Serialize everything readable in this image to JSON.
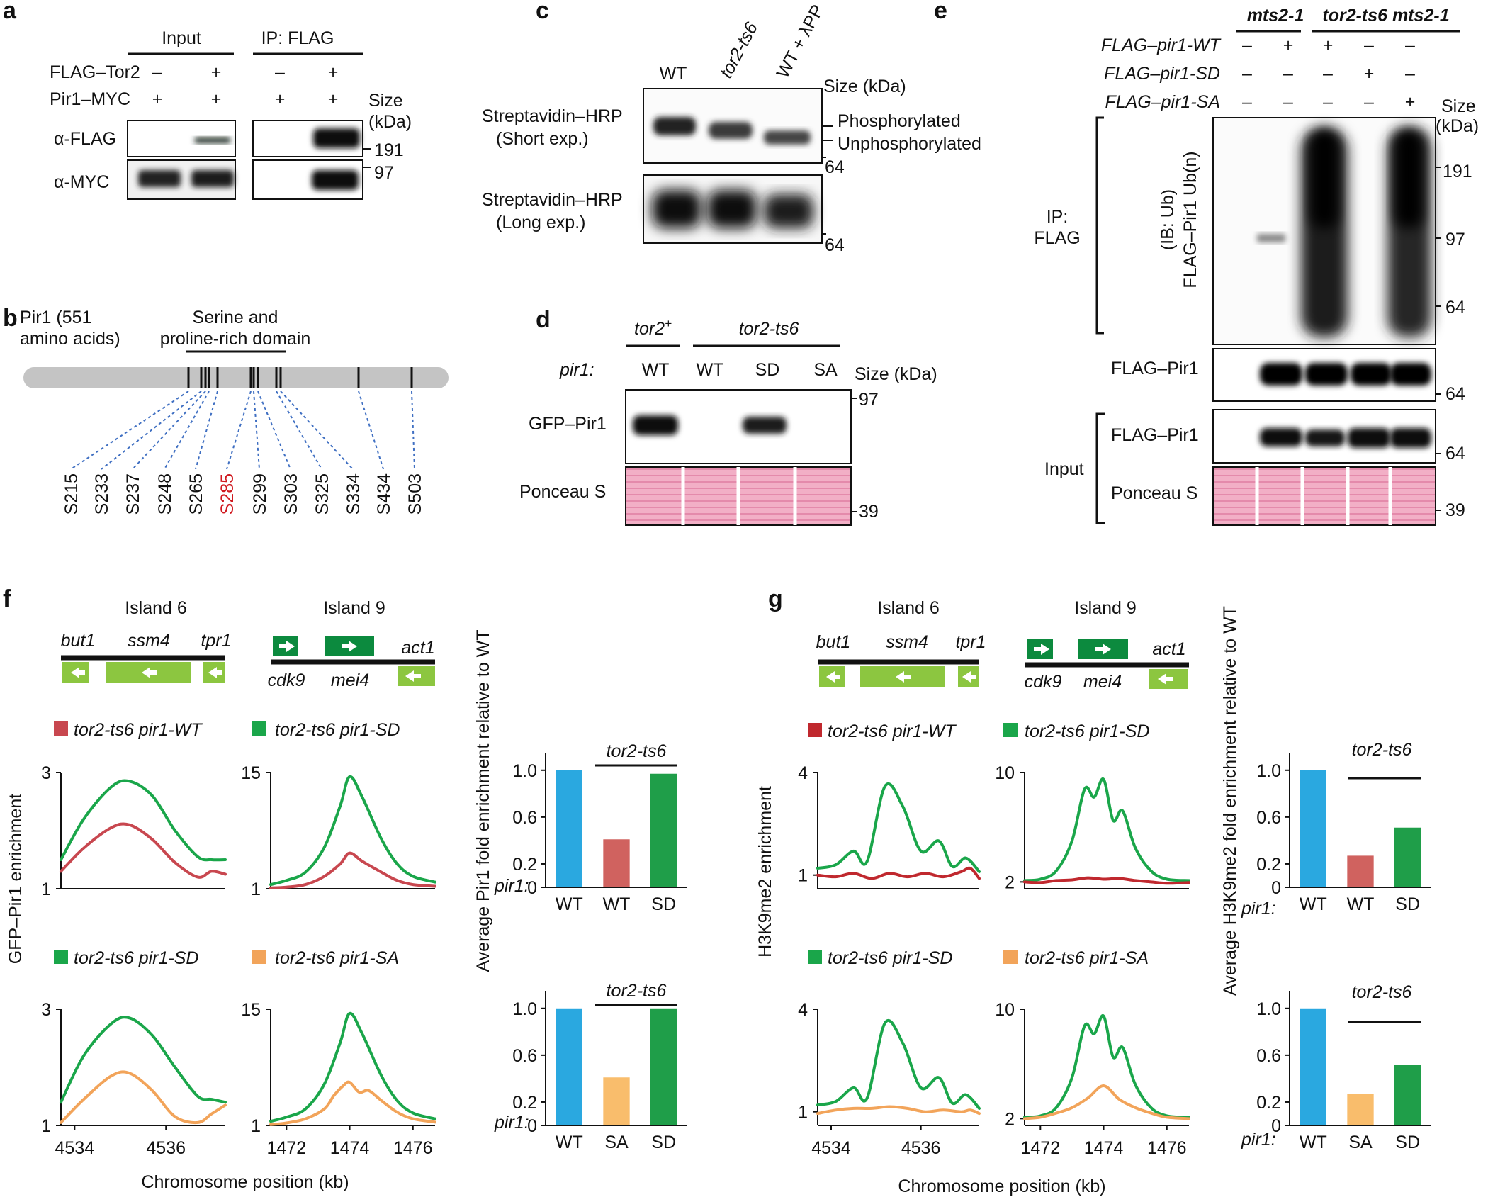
{
  "panels": {
    "a": {
      "letter": "a",
      "input_header": "Input",
      "ip_header": "IP: FLAG",
      "row1_label": "FLAG–Tor2",
      "row2_label": "Pir1–MYC",
      "row1_marks": [
        "–",
        "+",
        "–",
        "+"
      ],
      "row2_marks": [
        "+",
        "+",
        "+",
        "+"
      ],
      "size_label": "Size",
      "kda_label": "(kDa)",
      "blot1_label": "α-FLAG",
      "blot2_label": "α-MYC",
      "marker_191": "191",
      "marker_97": "97"
    },
    "b": {
      "letter": "b",
      "protein_line1": "Pir1 (551",
      "protein_line2": "amino acids)",
      "domain_line1": "Serine and",
      "domain_line2": "proline-rich domain",
      "sites": [
        "S215",
        "S233",
        "S237",
        "S248",
        "S265",
        "S285",
        "S299",
        "S303",
        "S325",
        "S334",
        "S434",
        "S503"
      ],
      "highlighted_site": "S285",
      "highlight_color": "#d0191f",
      "bar_color": "#c4c4c4",
      "dash_color": "#3f6fc2"
    },
    "c": {
      "letter": "c",
      "lanes": [
        "WT",
        "tor2-ts6",
        "WT + λPP"
      ],
      "size_label": "Size (kDa)",
      "blot1_line1": "Streptavidin–HRP",
      "blot1_line2": "(Short exp.)",
      "blot2_line1": "Streptavidin–HRP",
      "blot2_line2": "(Long exp.)",
      "phos_label": "Phosphorylated",
      "unphos_label": "Unphosphorylated",
      "marker_64": "64"
    },
    "d": {
      "letter": "d",
      "strain1": "tor2",
      "strain1_sup": "+",
      "strain2": "tor2-ts6",
      "pir1_label": "pir1:",
      "lanes": [
        "WT",
        "WT",
        "SD",
        "SA"
      ],
      "size_label": "Size (kDa)",
      "blot1_label": "GFP–Pir1",
      "blot2_label": "Ponceau S",
      "marker_97": "97",
      "marker_39": "39"
    },
    "e": {
      "letter": "e",
      "strain1": "mts2-1",
      "strain2": "tor2-ts6 mts2-1",
      "rows": [
        {
          "label": "FLAG–pir1-WT",
          "marks": [
            "–",
            "+",
            "+",
            "–",
            "–"
          ]
        },
        {
          "label": "FLAG–pir1-SD",
          "marks": [
            "–",
            "–",
            "–",
            "+",
            "–"
          ]
        },
        {
          "label": "FLAG–pir1-SA",
          "marks": [
            "–",
            "–",
            "–",
            "–",
            "+"
          ]
        }
      ],
      "size_label": "Size",
      "kda_label": "(kDa)",
      "ip_line1": "IP:",
      "ip_line2": "FLAG",
      "ib_line1": "(IB: Ub)",
      "ib_line2": "FLAG–Pir1 Ub(n)",
      "flag_pir1": "FLAG–Pir1",
      "input_label": "Input",
      "input_flag_pir1": "FLAG–Pir1",
      "ponceau": "Ponceau S",
      "markers": [
        "191",
        "97",
        "64",
        "64",
        "64",
        "39"
      ]
    },
    "f": {
      "letter": "f",
      "island6": "Island 6",
      "island9": "Island 9",
      "genes6": [
        "but1",
        "ssm4",
        "tpr1"
      ],
      "genes9_top": [
        "act1"
      ],
      "genes9_bottom": [
        "cdk9",
        "mei4"
      ],
      "ylabel": "GFP–Pir1 enrichment",
      "xlabel": "Chromosome position (kb)",
      "legend_top": [
        "tor2-ts6 pir1-WT",
        "tor2-ts6 pir1-SD"
      ],
      "legend_bottom": [
        "tor2-ts6 pir1-SD",
        "tor2-ts6 pir1-SA"
      ],
      "bar_ylabel": "Average Pir1 fold enrichment relative to WT",
      "bar_strain": "tor2-ts6",
      "pir1_label": "pir1:"
    },
    "g": {
      "letter": "g",
      "island6": "Island 6",
      "island9": "Island 9",
      "genes6": [
        "but1",
        "ssm4",
        "tpr1"
      ],
      "genes9_top": [
        "act1"
      ],
      "genes9_bottom": [
        "cdk9",
        "mei4"
      ],
      "ylabel": "H3K9me2 enrichment",
      "xlabel": "Chromosome position (kb)",
      "legend_top": [
        "tor2-ts6 pir1-WT",
        "tor2-ts6 pir1-SD"
      ],
      "legend_bottom": [
        "tor2-ts6 pir1-SD",
        "tor2-ts6 pir1-SA"
      ],
      "bar_ylabel": "Average H3K9me2 fold enrichment relative to WT",
      "bar_strain": "tor2-ts6",
      "pir1_label": "pir1:"
    }
  },
  "colors": {
    "wt": "#c8474f",
    "sd": "#1aa64a",
    "sa": "#f2a45a",
    "blue": "#2aa8e0",
    "salmon": "#d0625f",
    "lightorange": "#f9bd6c",
    "darkgreen": "#1f9e49",
    "gene_light": "#8cc640",
    "gene_dark": "#0c8a3e",
    "ponceau": "#f0a7c0"
  },
  "chart_data": [
    {
      "id": "f_top_i6",
      "type": "line",
      "title": "Island 6",
      "ylabel": "GFP–Pir1 enrichment",
      "ylim": [
        1,
        3
      ],
      "yticks": [
        "1",
        "3"
      ],
      "xlim": [
        4533.7,
        4537.3
      ],
      "xticks": [
        "4534",
        "4536"
      ],
      "series": [
        {
          "name": "tor2-ts6 pir1-SD",
          "color": "#1aa64a",
          "x": [
            4533.7,
            4534.2,
            4534.8,
            4535.2,
            4535.7,
            4536.2,
            4536.7,
            4537.0,
            4537.3
          ],
          "y": [
            1.5,
            2.2,
            2.75,
            2.85,
            2.6,
            2.0,
            1.55,
            1.5,
            1.5
          ]
        },
        {
          "name": "tor2-ts6 pir1-WT",
          "color": "#c8474f",
          "x": [
            4533.7,
            4534.2,
            4534.8,
            4535.2,
            4535.7,
            4536.2,
            4536.7,
            4537.0,
            4537.3
          ],
          "y": [
            1.3,
            1.7,
            2.05,
            2.1,
            1.85,
            1.45,
            1.2,
            1.3,
            1.25
          ]
        }
      ]
    },
    {
      "id": "f_top_i9",
      "type": "line",
      "title": "Island 9",
      "ylim": [
        1,
        15
      ],
      "yticks": [
        "1",
        "15"
      ],
      "xlim": [
        1471.5,
        1476.7
      ],
      "xticks": [
        "1472",
        "1474",
        "1476"
      ],
      "series": [
        {
          "name": "tor2-ts6 pir1-SD",
          "color": "#1aa64a",
          "x": [
            1471.5,
            1472,
            1472.6,
            1473.2,
            1473.7,
            1474,
            1474.4,
            1475,
            1475.5,
            1476,
            1476.7
          ],
          "y": [
            1.5,
            2,
            3,
            6,
            11,
            14.5,
            12,
            7,
            4,
            2.5,
            1.8
          ]
        },
        {
          "name": "tor2-ts6 pir1-WT",
          "color": "#c8474f",
          "x": [
            1471.5,
            1472,
            1472.6,
            1473.2,
            1473.7,
            1474,
            1474.4,
            1475,
            1475.5,
            1476,
            1476.7
          ],
          "y": [
            1.1,
            1.2,
            1.5,
            2.5,
            4,
            5.3,
            4.3,
            3,
            2,
            1.5,
            1.3
          ]
        }
      ]
    },
    {
      "id": "f_bar_top",
      "type": "bar",
      "ylabel": "Average Pir1 fold enrichment relative to WT",
      "ylim": [
        0,
        1.15
      ],
      "yticks": [
        "0",
        "0.2",
        "0.6",
        "1.0"
      ],
      "categories": [
        "WT",
        "WT",
        "SD"
      ],
      "values": [
        1.0,
        0.41,
        0.97
      ],
      "colors": [
        "#2aa8e0",
        "#d0625f",
        "#1f9e49"
      ]
    },
    {
      "id": "f_bot_i6",
      "type": "line",
      "xlabel": "Chromosome position (kb)",
      "ylim": [
        1,
        3
      ],
      "yticks": [
        "1",
        "3"
      ],
      "xlim": [
        4533.7,
        4537.3
      ],
      "xticks": [
        "4534",
        "4536"
      ],
      "series": [
        {
          "name": "tor2-ts6 pir1-SD",
          "color": "#1aa64a",
          "x": [
            4533.7,
            4534.2,
            4534.8,
            4535.2,
            4535.7,
            4536.2,
            4536.7,
            4537.0,
            4537.3
          ],
          "y": [
            1.4,
            2.2,
            2.75,
            2.85,
            2.55,
            2.0,
            1.5,
            1.45,
            1.4
          ]
        },
        {
          "name": "tor2-ts6 pir1-SA",
          "color": "#f2a45a",
          "x": [
            4533.7,
            4534.2,
            4534.8,
            4535.2,
            4535.7,
            4536.2,
            4536.7,
            4537.0,
            4537.3
          ],
          "y": [
            1.05,
            1.45,
            1.85,
            1.9,
            1.6,
            1.15,
            1.05,
            1.2,
            1.35
          ]
        }
      ]
    },
    {
      "id": "f_bot_i9",
      "type": "line",
      "xlabel": "Chromosome position (kb)",
      "ylim": [
        1,
        15
      ],
      "yticks": [
        "1",
        "15"
      ],
      "xlim": [
        1471.5,
        1476.7
      ],
      "xticks": [
        "1472",
        "1474",
        "1476"
      ],
      "series": [
        {
          "name": "tor2-ts6 pir1-SD",
          "color": "#1aa64a",
          "x": [
            1471.5,
            1472,
            1472.6,
            1473.2,
            1473.7,
            1474,
            1474.4,
            1475,
            1475.5,
            1476,
            1476.7
          ],
          "y": [
            1.5,
            2,
            3,
            6,
            11,
            14.5,
            12,
            7,
            4,
            2.5,
            1.8
          ]
        },
        {
          "name": "tor2-ts6 pir1-SA",
          "color": "#f2a45a",
          "x": [
            1471.5,
            1472,
            1472.6,
            1473.2,
            1473.5,
            1473.8,
            1474,
            1474.3,
            1474.6,
            1475,
            1475.5,
            1476,
            1476.7
          ],
          "y": [
            1.1,
            1.3,
            1.8,
            3,
            4.6,
            5.8,
            6.2,
            5,
            5.2,
            4,
            2.6,
            1.8,
            1.4
          ]
        }
      ]
    },
    {
      "id": "f_bar_bot",
      "type": "bar",
      "ylim": [
        0,
        1.15
      ],
      "yticks": [
        "0",
        "0.2",
        "0.6",
        "1.0"
      ],
      "categories": [
        "WT",
        "SA",
        "SD"
      ],
      "values": [
        1.0,
        0.41,
        1.0
      ],
      "colors": [
        "#2aa8e0",
        "#f9bd6c",
        "#1f9e49"
      ]
    },
    {
      "id": "g_top_i6",
      "type": "line",
      "title": "Island 6",
      "ylabel": "H3K9me2 enrichment",
      "ylim": [
        0.6,
        4
      ],
      "yticks": [
        "1",
        "4"
      ],
      "xlim": [
        4533.7,
        4537.3
      ],
      "xticks": [
        "4534",
        "4536"
      ],
      "series": [
        {
          "name": "tor2-ts6 pir1-SD",
          "color": "#1aa64a",
          "x": [
            4533.7,
            4534.1,
            4534.5,
            4534.8,
            4535.2,
            4535.6,
            4536,
            4536.4,
            4536.7,
            4537,
            4537.3
          ],
          "y": [
            1.2,
            1.3,
            1.7,
            1.4,
            3.6,
            3.0,
            1.7,
            2.0,
            1.25,
            1.5,
            1.1
          ]
        },
        {
          "name": "tor2-ts6 pir1-WT",
          "color": "#c0282e",
          "x": [
            4533.7,
            4534.1,
            4534.5,
            4534.9,
            4535.3,
            4535.7,
            4536.1,
            4536.5,
            4536.9,
            4537.1,
            4537.3
          ],
          "y": [
            1.0,
            0.95,
            1.05,
            0.9,
            1.05,
            0.95,
            1.05,
            0.95,
            1.1,
            1.2,
            0.9
          ]
        }
      ]
    },
    {
      "id": "g_top_i9",
      "type": "line",
      "title": "Island 9",
      "ylim": [
        1.5,
        10
      ],
      "yticks": [
        "2",
        "10"
      ],
      "xlim": [
        1471.5,
        1476.7
      ],
      "xticks": [
        "1472",
        "1474",
        "1476"
      ],
      "series": [
        {
          "name": "tor2-ts6 pir1-SD",
          "color": "#1aa64a",
          "x": [
            1471.5,
            1472,
            1472.5,
            1473,
            1473.4,
            1473.7,
            1474,
            1474.3,
            1474.6,
            1475,
            1475.5,
            1476,
            1476.7
          ],
          "y": [
            2.1,
            2.2,
            2.8,
            5,
            8.8,
            8.2,
            9.5,
            6.5,
            7.2,
            4.5,
            2.8,
            2.2,
            2.1
          ]
        },
        {
          "name": "tor2-ts6 pir1-WT",
          "color": "#c0282e",
          "x": [
            1471.5,
            1472,
            1472.5,
            1473,
            1473.5,
            1474,
            1474.5,
            1475,
            1475.5,
            1476,
            1476.7
          ],
          "y": [
            2.0,
            1.95,
            2.1,
            2.15,
            2.3,
            2.2,
            2.25,
            2.1,
            2.0,
            1.9,
            1.95
          ]
        }
      ]
    },
    {
      "id": "g_bar_top",
      "type": "bar",
      "ylabel": "Average H3K9me2 fold enrichment relative to WT",
      "ylim": [
        0,
        1.15
      ],
      "yticks": [
        "0",
        "0.2",
        "0.6",
        "1.0"
      ],
      "categories": [
        "WT",
        "WT",
        "SD"
      ],
      "values": [
        1.0,
        0.27,
        0.51
      ],
      "colors": [
        "#2aa8e0",
        "#d0625f",
        "#1f9e49"
      ]
    },
    {
      "id": "g_bot_i6",
      "type": "line",
      "xlabel": "Chromosome position (kb)",
      "ylim": [
        0.6,
        4
      ],
      "yticks": [
        "1",
        "4"
      ],
      "xlim": [
        4533.7,
        4537.3
      ],
      "xticks": [
        "4534",
        "4536"
      ],
      "series": [
        {
          "name": "tor2-ts6 pir1-SD",
          "color": "#1aa64a",
          "x": [
            4533.7,
            4534.1,
            4534.5,
            4534.8,
            4535.2,
            4535.6,
            4536,
            4536.4,
            4536.7,
            4537,
            4537.3
          ],
          "y": [
            1.2,
            1.3,
            1.7,
            1.4,
            3.6,
            3.0,
            1.7,
            2.0,
            1.25,
            1.5,
            1.1
          ]
        },
        {
          "name": "tor2-ts6 pir1-SA",
          "color": "#f2a45a",
          "x": [
            4533.7,
            4534.1,
            4534.5,
            4534.9,
            4535.3,
            4535.7,
            4536.1,
            4536.5,
            4536.9,
            4537.1,
            4537.3
          ],
          "y": [
            0.95,
            1.05,
            1.1,
            1.1,
            1.15,
            1.1,
            1.0,
            1.05,
            1.0,
            1.05,
            0.95
          ]
        }
      ]
    },
    {
      "id": "g_bot_i9",
      "type": "line",
      "xlabel": "Chromosome position (kb)",
      "ylim": [
        1.5,
        10
      ],
      "yticks": [
        "2",
        "10"
      ],
      "xlim": [
        1471.5,
        1476.7
      ],
      "xticks": [
        "1472",
        "1474",
        "1476"
      ],
      "series": [
        {
          "name": "tor2-ts6 pir1-SD",
          "color": "#1aa64a",
          "x": [
            1471.5,
            1472,
            1472.5,
            1473,
            1473.4,
            1473.7,
            1474,
            1474.3,
            1474.6,
            1475,
            1475.5,
            1476,
            1476.7
          ],
          "y": [
            2.1,
            2.2,
            2.8,
            5,
            8.8,
            8.2,
            9.5,
            6.5,
            7.2,
            4.5,
            2.8,
            2.2,
            2.1
          ]
        },
        {
          "name": "tor2-ts6 pir1-SA",
          "color": "#f2a45a",
          "x": [
            1471.5,
            1472,
            1472.5,
            1473,
            1473.5,
            1474,
            1474.5,
            1475,
            1475.5,
            1476,
            1476.7
          ],
          "y": [
            2.0,
            2.1,
            2.4,
            2.8,
            3.5,
            4.4,
            3.4,
            2.8,
            2.4,
            2.1,
            2.0
          ]
        }
      ]
    },
    {
      "id": "g_bar_bot",
      "type": "bar",
      "ylim": [
        0,
        1.15
      ],
      "yticks": [
        "0",
        "0.2",
        "0.6",
        "1.0"
      ],
      "categories": [
        "WT",
        "SA",
        "SD"
      ],
      "values": [
        1.0,
        0.27,
        0.52
      ],
      "colors": [
        "#2aa8e0",
        "#f9bd6c",
        "#1f9e49"
      ]
    }
  ]
}
